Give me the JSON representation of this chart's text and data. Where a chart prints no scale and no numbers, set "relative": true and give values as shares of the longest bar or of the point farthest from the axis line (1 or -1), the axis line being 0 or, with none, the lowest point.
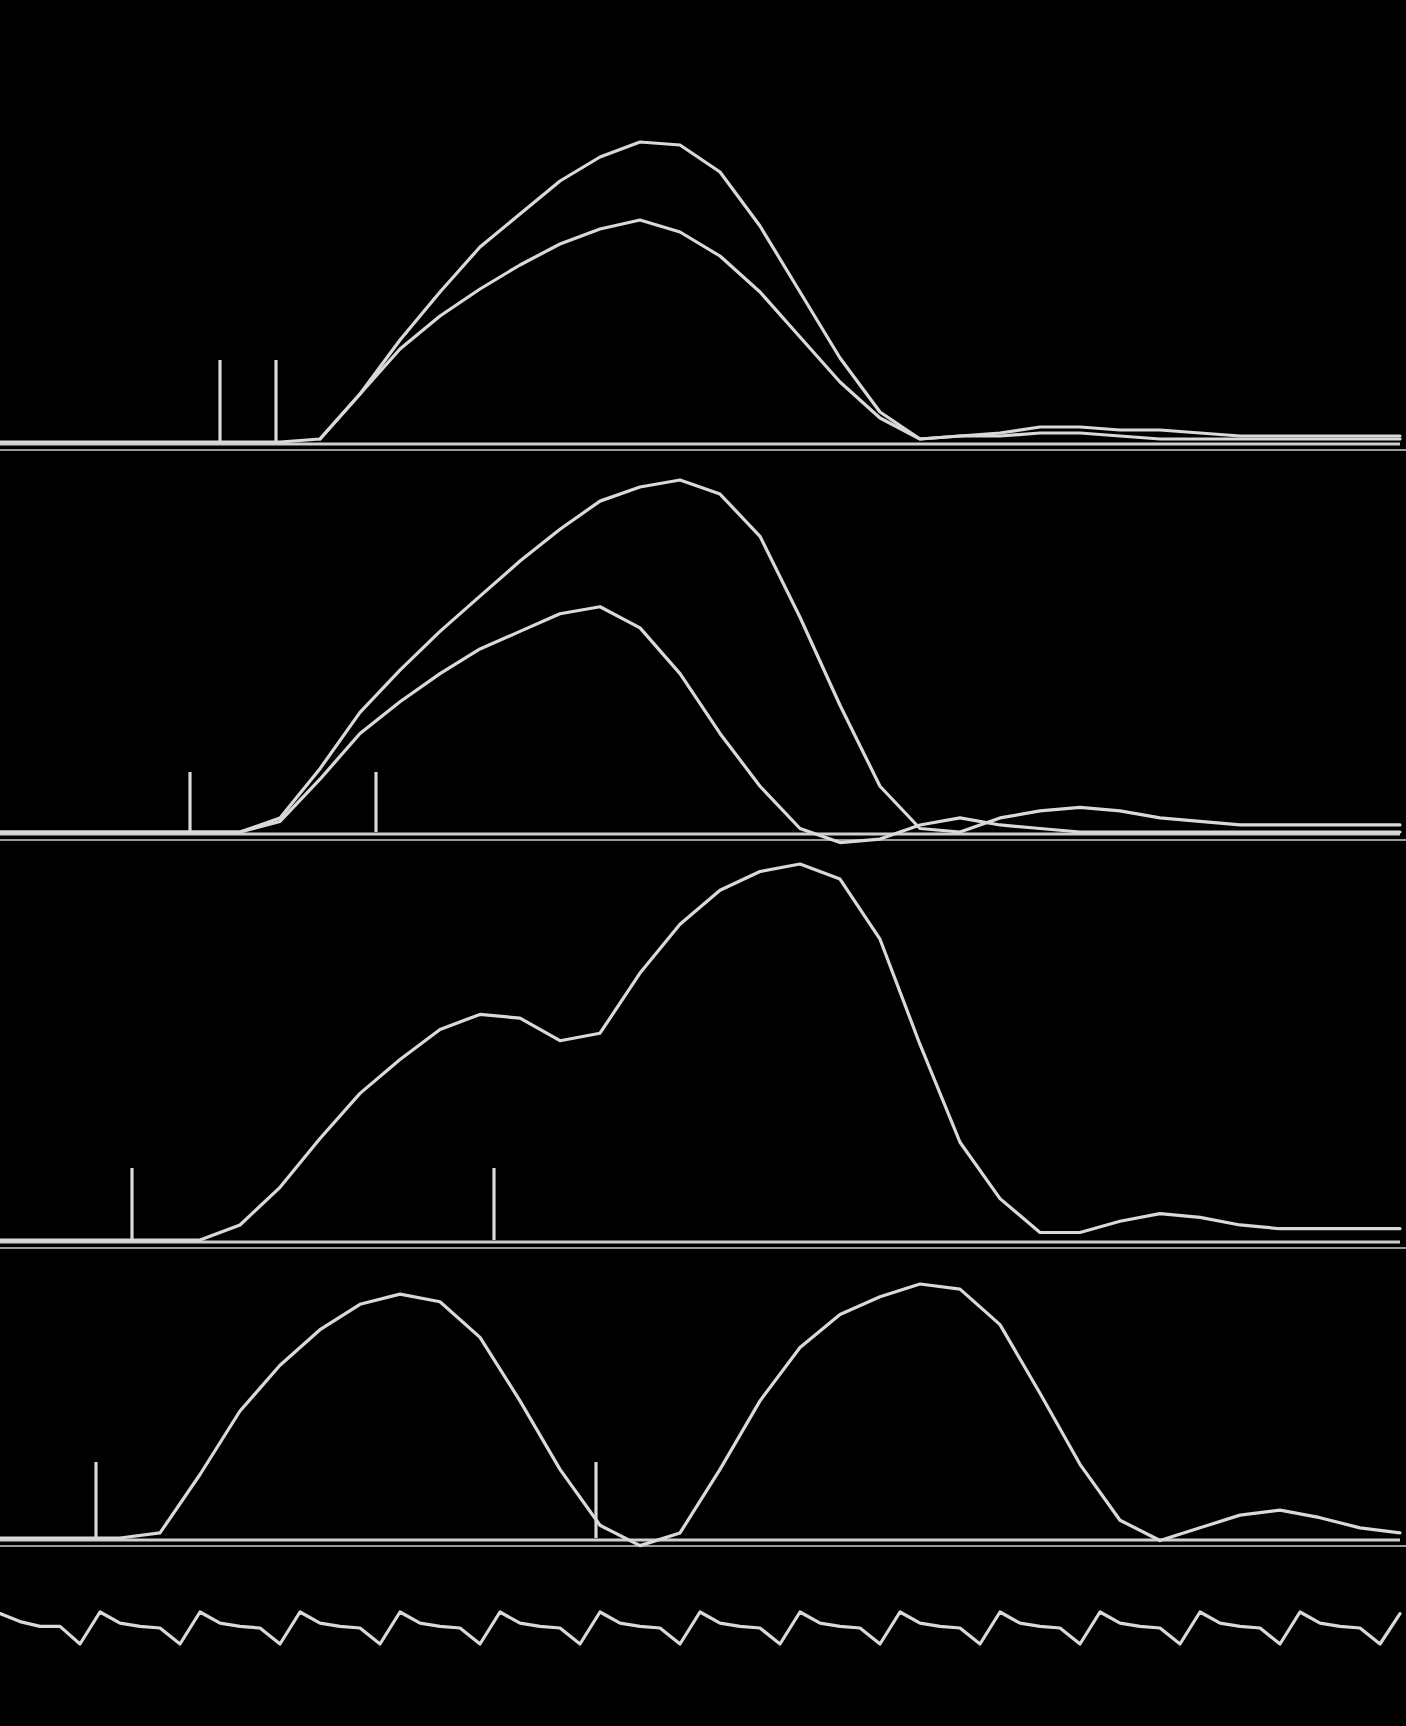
{
  "chart_data": [
    {
      "type": "line",
      "relative": true,
      "categories": [
        null,
        null,
        null,
        null,
        null,
        null,
        null,
        null,
        null,
        null,
        null,
        null,
        null,
        null,
        null,
        null,
        null,
        null,
        null,
        null,
        null,
        null,
        null,
        null,
        null,
        null,
        null,
        null,
        null,
        null,
        null,
        null,
        null,
        null,
        null,
        null
      ],
      "series": [
        {
          "color": "#d9d9d9",
          "values": [
            0,
            0,
            0,
            0,
            0,
            0,
            0,
            0,
            0.01,
            0.16,
            0.34,
            0.5,
            0.65,
            0.76,
            0.87,
            0.95,
            1.0,
            0.99,
            0.9,
            0.72,
            0.5,
            0.28,
            0.1,
            0.01,
            0.02,
            0.03,
            0.05,
            0.05,
            0.04,
            0.04,
            0.03,
            0.02,
            0.02,
            0.02,
            0.02,
            0.02
          ]
        },
        {
          "color": "#d9d9d9",
          "values": [
            null,
            null,
            null,
            null,
            null,
            null,
            null,
            null,
            0.01,
            0.16,
            0.31,
            0.42,
            0.51,
            0.59,
            0.66,
            0.71,
            0.74,
            0.7,
            0.62,
            0.5,
            0.35,
            0.2,
            0.08,
            0.01,
            0.02,
            0.02,
            0.03,
            0.03,
            0.02,
            0.01,
            0.01,
            0.01,
            0.01,
            0.01,
            0.01,
            0.01
          ]
        }
      ]
    },
    {
      "type": "line",
      "relative": true,
      "categories": [
        null,
        null,
        null,
        null,
        null,
        null,
        null,
        null,
        null,
        null,
        null,
        null,
        null,
        null,
        null,
        null,
        null,
        null,
        null,
        null,
        null,
        null,
        null,
        null,
        null,
        null,
        null,
        null,
        null,
        null,
        null,
        null,
        null,
        null,
        null,
        null
      ],
      "series": [
        {
          "color": "#d9d9d9",
          "values": [
            0,
            0,
            0,
            0,
            0,
            0,
            0,
            0.04,
            0.18,
            0.34,
            0.46,
            0.57,
            0.67,
            0.77,
            0.86,
            0.94,
            0.98,
            1.0,
            0.96,
            0.84,
            0.61,
            0.36,
            0.13,
            0.01,
            0,
            0.04,
            0.06,
            0.07,
            0.06,
            0.04,
            0.03,
            0.02,
            0.02,
            0.02,
            0.02,
            0.02
          ]
        },
        {
          "color": "#d9d9d9",
          "values": [
            0,
            0,
            0,
            0,
            0,
            0,
            0,
            0.03,
            0.15,
            0.28,
            0.37,
            0.45,
            0.52,
            0.57,
            0.62,
            0.64,
            0.58,
            0.45,
            0.28,
            0.13,
            0.01,
            -0.03,
            -0.02,
            0.02,
            0.04,
            0.02,
            0.01,
            0,
            0,
            0,
            0,
            0,
            0,
            0,
            0,
            0
          ]
        }
      ]
    },
    {
      "type": "line",
      "relative": true,
      "categories": [
        null,
        null,
        null,
        null,
        null,
        null,
        null,
        null,
        null,
        null,
        null,
        null,
        null,
        null,
        null,
        null,
        null,
        null,
        null,
        null,
        null,
        null,
        null,
        null,
        null,
        null,
        null,
        null,
        null,
        null,
        null,
        null,
        null,
        null,
        null,
        null
      ],
      "series": [
        {
          "color": "#d9d9d9",
          "values": [
            0,
            0,
            0,
            0,
            0,
            0,
            0.04,
            0.14,
            0.27,
            0.39,
            0.48,
            0.56,
            0.6,
            0.59,
            0.53,
            0.55,
            0.71,
            0.84,
            0.93,
            0.98,
            1.0,
            0.96,
            0.8,
            0.52,
            0.26,
            0.11,
            0.02,
            0.02,
            0.05,
            0.07,
            0.06,
            0.04,
            0.03,
            0.03,
            0.03,
            0.03
          ]
        }
      ]
    },
    {
      "type": "line",
      "relative": true,
      "categories": [
        null,
        null,
        null,
        null,
        null,
        null,
        null,
        null,
        null,
        null,
        null,
        null,
        null,
        null,
        null,
        null,
        null,
        null,
        null,
        null,
        null,
        null,
        null,
        null,
        null,
        null,
        null,
        null,
        null,
        null,
        null,
        null,
        null,
        null,
        null,
        null
      ],
      "series": [
        {
          "color": "#d9d9d9",
          "values": [
            0,
            0,
            0,
            0,
            0.02,
            0.25,
            0.5,
            0.68,
            0.82,
            0.92,
            0.96,
            0.93,
            0.79,
            0.54,
            0.27,
            0.05,
            -0.03,
            0.02,
            0.27,
            0.54,
            0.75,
            0.88,
            0.95,
            1.0,
            0.98,
            0.84,
            0.57,
            0.29,
            0.07,
            -0.01,
            0.04,
            0.09,
            0.11,
            0.08,
            0.04,
            0.02
          ]
        }
      ]
    },
    {
      "type": "line",
      "relative": true,
      "categories": [
        null,
        null,
        null,
        null,
        null,
        null,
        null,
        null,
        null,
        null,
        null,
        null,
        null,
        null,
        null,
        null,
        null,
        null,
        null,
        null,
        null,
        null,
        null,
        null,
        null,
        null,
        null,
        null,
        null,
        null,
        null,
        null,
        null,
        null,
        null,
        null,
        null,
        null,
        null,
        null,
        null,
        null,
        null,
        null,
        null,
        null,
        null,
        null,
        null,
        null,
        null,
        null,
        null,
        null,
        null,
        null,
        null,
        null,
        null,
        null,
        null,
        null,
        null,
        null,
        null,
        null,
        null,
        null,
        null,
        null,
        null
      ],
      "series": [
        {
          "color": "#d9d9d9",
          "values": [
            0.95,
            0.7,
            0.55,
            0.55,
            0,
            1,
            0.65,
            0.55,
            0.5,
            0,
            1,
            0.65,
            0.55,
            0.5,
            0,
            1,
            0.65,
            0.55,
            0.5,
            0,
            1,
            0.65,
            0.55,
            0.5,
            0,
            1,
            0.65,
            0.55,
            0.5,
            0,
            1,
            0.65,
            0.55,
            0.5,
            0,
            1,
            0.65,
            0.55,
            0.5,
            0,
            1,
            0.65,
            0.55,
            0.5,
            0,
            1,
            0.65,
            0.55,
            0.5,
            0,
            1,
            0.65,
            0.55,
            0.5,
            0,
            1,
            0.65,
            0.55,
            0.5,
            0,
            1,
            0.65,
            0.55,
            0.5,
            0,
            1,
            0.65,
            0.55,
            0.5,
            0,
            0.95
          ]
        }
      ]
    }
  ]
}
